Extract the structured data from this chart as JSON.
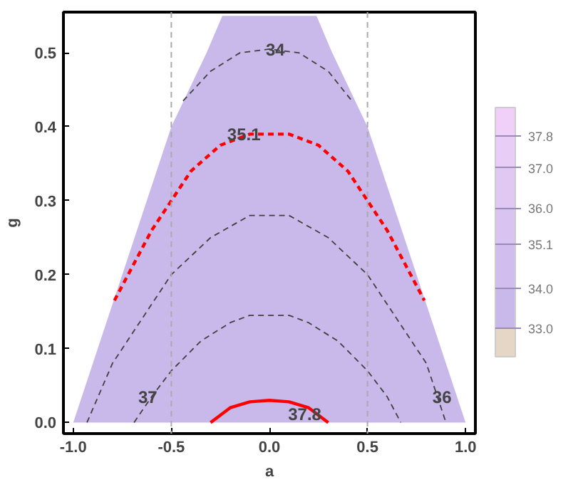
{
  "chart_data": {
    "type": "line",
    "xlabel": "a",
    "ylabel": "g",
    "xlim": [
      -1.05,
      1.05
    ],
    "ylim": [
      -0.015,
      0.555
    ],
    "xticks": [
      {
        "value": -1.0,
        "label": "-1.0"
      },
      {
        "value": -0.5,
        "label": "-0.5"
      },
      {
        "value": 0.0,
        "label": "0.0"
      },
      {
        "value": 0.5,
        "label": "0.5"
      },
      {
        "value": 1.0,
        "label": "1.0"
      }
    ],
    "yticks": [
      {
        "value": 0.0,
        "label": "0.0"
      },
      0.1,
      0.2,
      0.3,
      0.4,
      0.5
    ],
    "grid": false,
    "series": [
      {
        "type": "area",
        "color": "#c9b9ea",
        "x": [
          -1.0,
          -0.5,
          -0.32,
          -0.24,
          0.24,
          0.32,
          0.5,
          1.0
        ],
        "values": [
          0.0,
          0.4,
          0.5,
          0.55,
          0.55,
          0.5,
          0.4,
          0.0
        ]
      },
      {
        "color": "#404040",
        "line_style": "dashed",
        "x": [
          -0.44,
          -0.3,
          -0.15,
          0.0,
          0.15,
          0.3,
          0.42
        ],
        "values": [
          0.435,
          0.475,
          0.5,
          0.505,
          0.5,
          0.475,
          0.435
        ]
      },
      {
        "color": "#ff0000",
        "line_style": "dashed",
        "x": [
          -0.79,
          -0.7,
          -0.6,
          -0.5,
          -0.4,
          -0.25,
          -0.1,
          0.1,
          0.25,
          0.4,
          0.5,
          0.6,
          0.7,
          0.79
        ],
        "values": [
          0.165,
          0.21,
          0.26,
          0.3,
          0.34,
          0.375,
          0.39,
          0.39,
          0.375,
          0.34,
          0.3,
          0.26,
          0.21,
          0.165
        ]
      },
      {
        "color": "#404040",
        "line_style": "dashed",
        "x": [
          -0.93,
          -0.8,
          -0.65,
          -0.5,
          -0.3,
          -0.1,
          0.1,
          0.3,
          0.5,
          0.65,
          0.8,
          0.9
        ],
        "values": [
          0.0,
          0.08,
          0.14,
          0.2,
          0.25,
          0.28,
          0.28,
          0.25,
          0.2,
          0.14,
          0.08,
          0.0
        ]
      },
      {
        "color": "#404040",
        "line_style": "dashed",
        "x": [
          -0.69,
          -0.6,
          -0.5,
          -0.35,
          -0.2,
          -0.1,
          0.1,
          0.2,
          0.35,
          0.5,
          0.6,
          0.67
        ],
        "values": [
          0.0,
          0.035,
          0.07,
          0.11,
          0.135,
          0.145,
          0.145,
          0.135,
          0.11,
          0.07,
          0.035,
          0.0
        ]
      },
      {
        "color": "#ff0000",
        "line_style": "solid",
        "x": [
          -0.3,
          -0.2,
          -0.1,
          0.0,
          0.1,
          0.2,
          0.3
        ],
        "values": [
          0.0,
          0.02,
          0.028,
          0.03,
          0.028,
          0.02,
          0.0
        ]
      }
    ],
    "ref_lines": [
      {
        "axis": "x",
        "value": -0.5,
        "color": "#aaaaaa",
        "line_style": "dashed"
      },
      {
        "axis": "x",
        "value": 0.5,
        "color": "#aaaaaa",
        "line_style": "dashed"
      }
    ],
    "annotations": [
      {
        "text": "34",
        "x": 0.03,
        "y": 0.505
      },
      {
        "text": "35.1",
        "x": -0.13,
        "y": 0.39
      },
      {
        "text": "37",
        "x": -0.62,
        "y": 0.035
      },
      {
        "text": "37.8",
        "x": 0.18,
        "y": 0.012
      },
      {
        "text": "36",
        "x": 0.88,
        "y": 0.035
      }
    ],
    "clim": [
      32.3,
      38.5
    ],
    "cticks": [
      {
        "value": 33,
        "label": "33.0"
      },
      {
        "value": 34,
        "label": "34.0"
      },
      35.1,
      {
        "value": 36,
        "label": "36.0"
      },
      {
        "value": 37,
        "label": "37.0"
      },
      37.8
    ],
    "colors": [
      "#e6d6c6",
      "#c9b9ea",
      "#d1beee",
      "#d9c4f1",
      "#e0c8f3",
      "#e8cdf6",
      "#f0d0f8"
    ]
  }
}
